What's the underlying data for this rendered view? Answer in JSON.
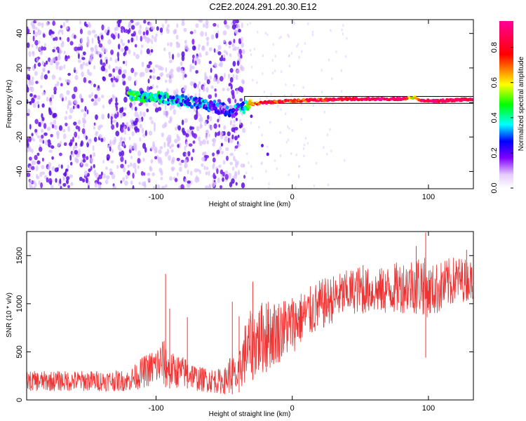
{
  "title": "C2E2.2024.291.20.30.E12",
  "colors": {
    "snr_line": "#ee3333",
    "ridge_outline": "#000000"
  },
  "chart_data": [
    {
      "type": "heatmap",
      "xlabel": "Height of straight line (km)",
      "ylabel": "Frequency (Hz)",
      "xlim": [
        -195,
        133
      ],
      "ylim": [
        -50,
        48
      ],
      "x_ticks": [
        -100,
        0,
        100
      ],
      "y_ticks": [
        -40,
        -20,
        0,
        20,
        40
      ],
      "colorbar": {
        "label": "Normalized spectral amplitude",
        "range": [
          0,
          0.95
        ],
        "ticks": [
          0.0,
          0.2,
          0.4,
          0.6,
          0.8
        ],
        "colormap": [
          "#ffffff",
          "#e6ccff",
          "#7f00ff",
          "#0000ff",
          "#00ffff",
          "#00ff00",
          "#ffff00",
          "#ff0000",
          "#ff0099"
        ]
      },
      "ridge": {
        "x": [
          -115,
          -100,
          -80,
          -60,
          -45,
          -38,
          -30,
          -20,
          0,
          40,
          80,
          90,
          95,
          110,
          133
        ],
        "freq_hz": [
          4,
          3,
          1,
          -2,
          -5,
          -4,
          -1,
          0,
          1,
          2,
          2,
          3,
          1,
          1,
          2
        ],
        "amplitude": [
          0.4,
          0.35,
          0.3,
          0.25,
          0.2,
          0.3,
          0.6,
          0.8,
          0.75,
          0.85,
          0.9,
          0.55,
          0.85,
          0.9,
          0.9
        ]
      }
    },
    {
      "type": "line",
      "xlabel": "Height of straight line (km)",
      "ylabel": "SNR (10 * v/v)",
      "xlim": [
        -195,
        133
      ],
      "ylim": [
        0,
        1750
      ],
      "x_ticks": [
        -100,
        0,
        100
      ],
      "y_ticks": [
        0,
        500,
        1000,
        1500
      ],
      "envelope": {
        "x": [
          -195,
          -120,
          -110,
          -100,
          -95,
          -90,
          -75,
          -70,
          -50,
          -45,
          -40,
          -38,
          -35,
          -30,
          -20,
          -10,
          0,
          10,
          20,
          30,
          40,
          50,
          60,
          70,
          80,
          90,
          95,
          100,
          110,
          120,
          133
        ],
        "low": [
          90,
          90,
          120,
          150,
          140,
          120,
          120,
          90,
          60,
          60,
          60,
          100,
          150,
          200,
          280,
          380,
          480,
          620,
          700,
          800,
          880,
          900,
          900,
          880,
          900,
          900,
          880,
          850,
          900,
          1000,
          1050
        ],
        "high": [
          300,
          310,
          450,
          550,
          650,
          500,
          430,
          350,
          320,
          500,
          380,
          600,
          800,
          950,
          1050,
          1050,
          1100,
          1150,
          1250,
          1300,
          1350,
          1400,
          1350,
          1400,
          1450,
          1500,
          1550,
          1400,
          1450,
          1500,
          1450
        ]
      },
      "spikes": [
        {
          "x": -93,
          "y": 1310
        },
        {
          "x": -90,
          "y": 950
        },
        {
          "x": -77,
          "y": 860
        },
        {
          "x": -44,
          "y": 1020
        },
        {
          "x": -39,
          "y": 870
        },
        {
          "x": -29,
          "y": 1230
        },
        {
          "x": -19,
          "y": 1000
        },
        {
          "x": 52,
          "y": 1400
        },
        {
          "x": 91,
          "y": 1600
        },
        {
          "x": 98,
          "y": 1740
        },
        {
          "x": 98,
          "y": 440
        },
        {
          "x": 128,
          "y": 1560
        }
      ]
    }
  ]
}
